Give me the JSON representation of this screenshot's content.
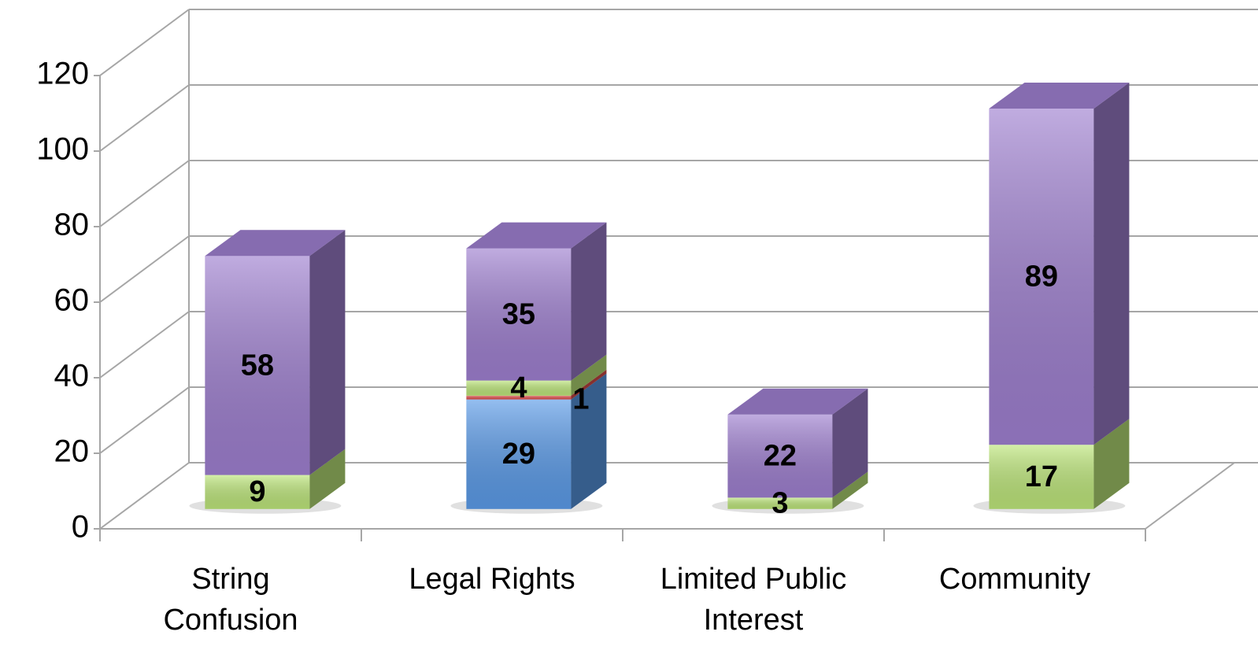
{
  "chart_data": {
    "type": "bar",
    "stacked": true,
    "categories": [
      "String Confusion",
      "Legal Rights",
      "Limited Public Interest",
      "Community"
    ],
    "series": [
      {
        "color": "#5b9be8",
        "values": [
          null,
          29,
          null,
          null
        ]
      },
      {
        "color": "#e0504d",
        "values": [
          null,
          1,
          null,
          null
        ]
      },
      {
        "color": "#bde67a",
        "values": [
          9,
          4,
          3,
          17
        ]
      },
      {
        "color": "#9e7fcf",
        "values": [
          58,
          35,
          22,
          89
        ]
      }
    ],
    "ylim": [
      0,
      120
    ],
    "yticks": [
      0,
      20,
      40,
      60,
      80,
      100,
      120
    ],
    "grid": true
  }
}
